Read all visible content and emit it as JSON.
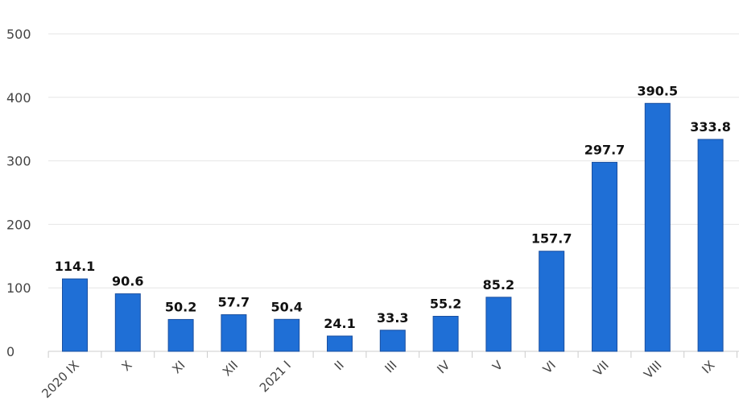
{
  "chart_data": {
    "type": "bar",
    "categories": [
      "2020 IX",
      "X",
      "XI",
      "XII",
      "2021 I",
      "II",
      "III",
      "IV",
      "V",
      "VI",
      "VII",
      "VIII",
      "IX"
    ],
    "values": [
      114.1,
      90.6,
      50.2,
      57.7,
      50.4,
      24.1,
      33.3,
      55.2,
      85.2,
      157.7,
      297.7,
      390.5,
      333.8
    ],
    "data_labels": [
      "114.1",
      "90.6",
      "50.2",
      "57.7",
      "50.4",
      "24.1",
      "33.3",
      "55.2",
      "85.2",
      "157.7",
      "297.7",
      "390.5",
      "333.8"
    ],
    "y_ticks": [
      "0",
      "100",
      "200",
      "300",
      "400",
      "500"
    ],
    "ylim": [
      0,
      500
    ],
    "grid": true,
    "legend": "none",
    "bar_color": "#1f6fd6"
  }
}
